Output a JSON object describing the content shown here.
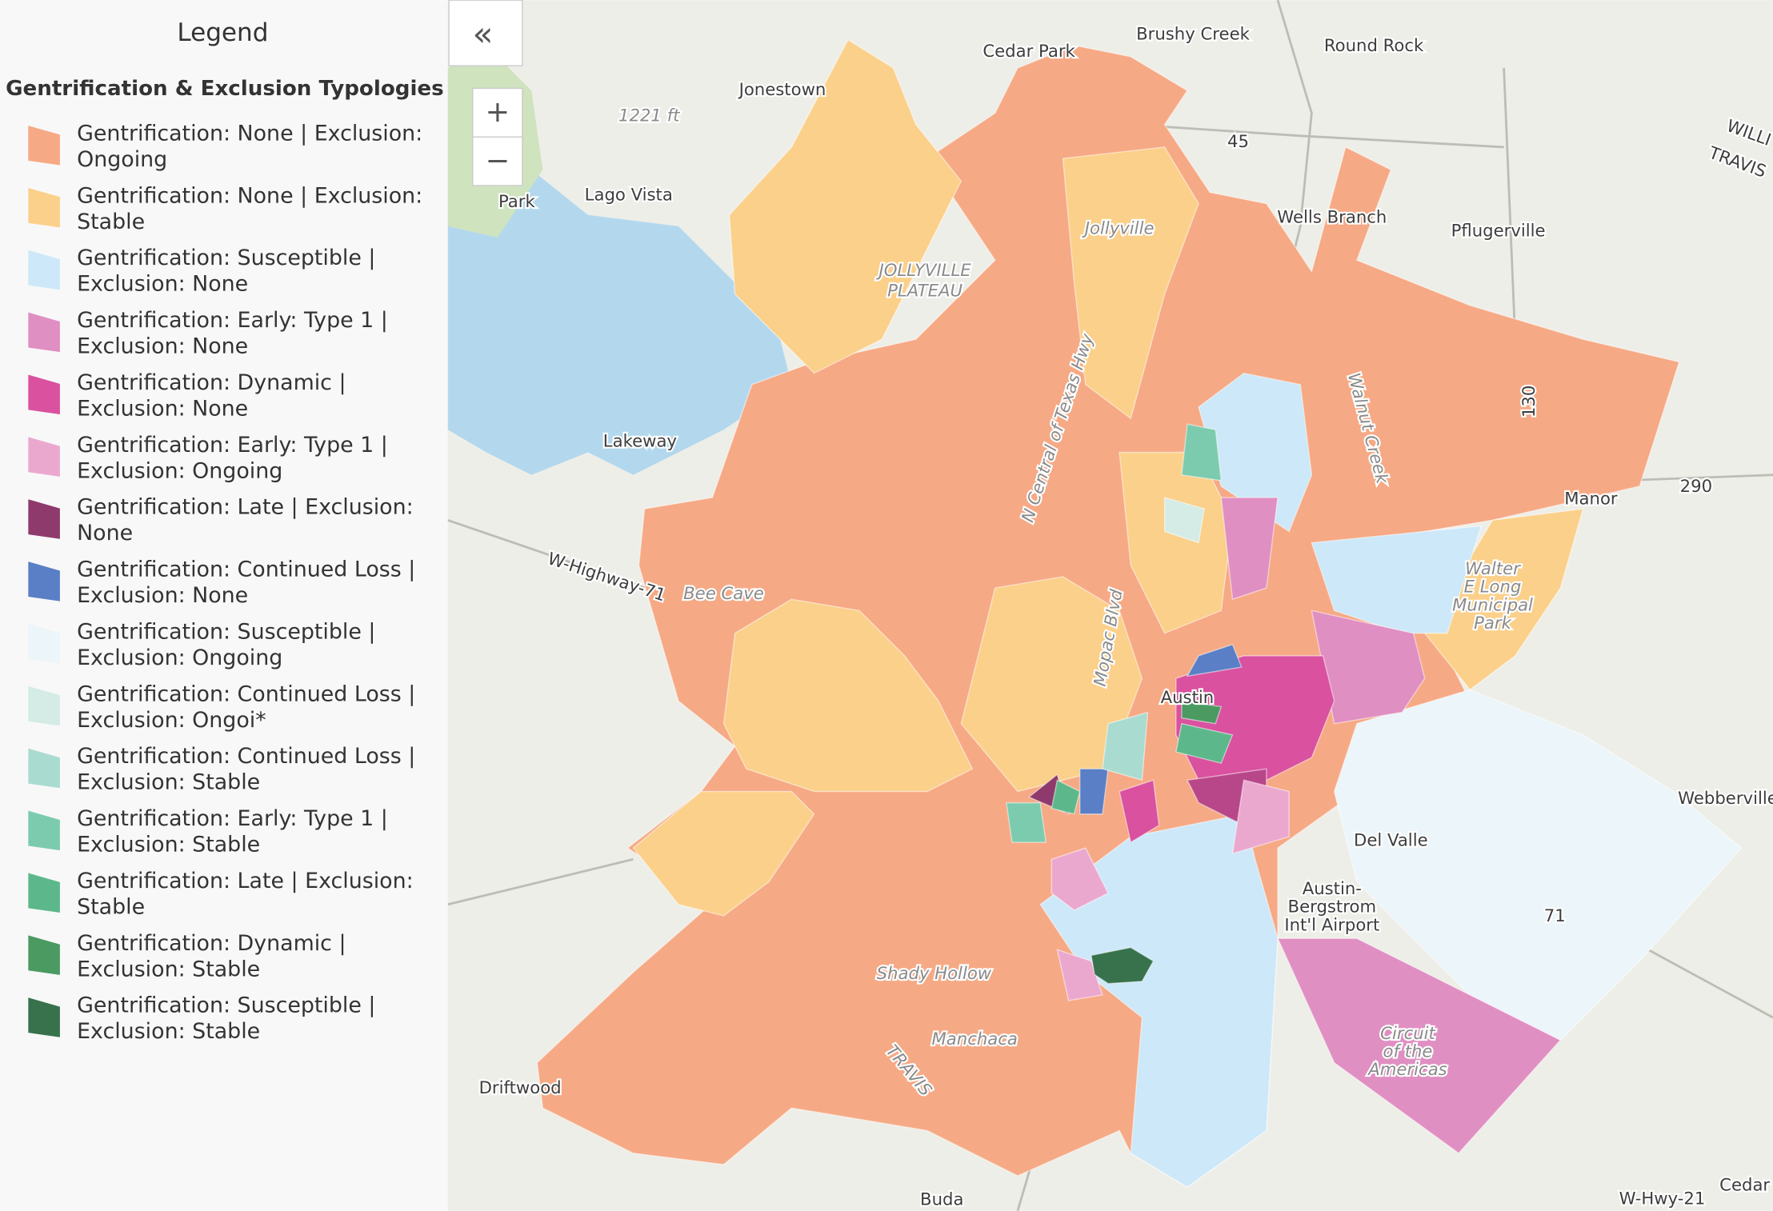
{
  "legend": {
    "title": "Legend",
    "subtitle": "Gentrification & Exclusion Typologies",
    "items": [
      {
        "lines": [
          "Gentrification: None | Exclusion:",
          "Ongoing"
        ],
        "color": "#f6a985"
      },
      {
        "lines": [
          "Gentrification: None | Exclusion:",
          "Stable"
        ],
        "color": "#fbd08a"
      },
      {
        "lines": [
          "Gentrification: Susceptible |",
          "Exclusion: None"
        ],
        "color": "#cde8f8"
      },
      {
        "lines": [
          "Gentrification: Early: Type 1 |",
          "Exclusion: None"
        ],
        "color": "#e08fc2"
      },
      {
        "lines": [
          "Gentrification: Dynamic |",
          "Exclusion: None"
        ],
        "color": "#d9519f"
      },
      {
        "lines": [
          "Gentrification: Early: Type 1 |",
          "Exclusion: Ongoing"
        ],
        "color": "#eba8cf"
      },
      {
        "lines": [
          "Gentrification: Late | Exclusion:",
          "None"
        ],
        "color": "#8e3a6c"
      },
      {
        "lines": [
          "Gentrification: Continued Loss |",
          "Exclusion: None"
        ],
        "color": "#5a7fc6"
      },
      {
        "lines": [
          "Gentrification: Susceptible |",
          "Exclusion: Ongoing"
        ],
        "color": "#ecf5f9"
      },
      {
        "lines": [
          "Gentrification: Continued Loss |",
          "Exclusion: Ongoi*"
        ],
        "color": "#d4ebe6"
      },
      {
        "lines": [
          "Gentrification: Continued Loss |",
          "Exclusion: Stable"
        ],
        "color": "#aadbd0"
      },
      {
        "lines": [
          "Gentrification: Early: Type 1 |",
          "Exclusion: Stable"
        ],
        "color": "#7ccbae"
      },
      {
        "lines": [
          "Gentrification: Late | Exclusion:",
          "Stable"
        ],
        "color": "#5cb88a"
      },
      {
        "lines": [
          "Gentrification: Dynamic |",
          "Exclusion: Stable"
        ],
        "color": "#4a9a62"
      },
      {
        "lines": [
          "Gentrification: Susceptible |",
          "Exclusion: Stable"
        ],
        "color": "#37724c"
      }
    ]
  },
  "controls": {
    "collapse": "«",
    "zoom_in": "+",
    "zoom_out": "−"
  },
  "map": {
    "places": [
      "Cedar Park",
      "Brushy Creek",
      "Round Rock",
      "Jonestown",
      "1221 ft",
      "Lago Vista",
      "Park",
      "Wells Branch",
      "Pflugerville",
      "Jollyville",
      "JOLLYVILLE",
      "PLATEAU",
      "Lakeway",
      "Manor",
      "290",
      "W-Highway-71",
      "Bee Cave",
      "Walter",
      "E Long",
      "Municipal",
      "Park",
      "Austin",
      "Webberville",
      "Del Valle",
      "Austin-",
      "Bergstrom",
      "Int'l Airport",
      "Shady Hollow",
      "Manchaca",
      "Driftwood",
      "Circuit",
      "of the",
      "Americas",
      "Buda",
      "W-Hwy-21",
      "Cedar",
      "TRAVIS",
      "WILLI",
      "TRAVIS",
      "Walnut Creek",
      "Mopac Blvd",
      "N Central of Texas Hwy",
      "45",
      "130",
      "71"
    ]
  }
}
